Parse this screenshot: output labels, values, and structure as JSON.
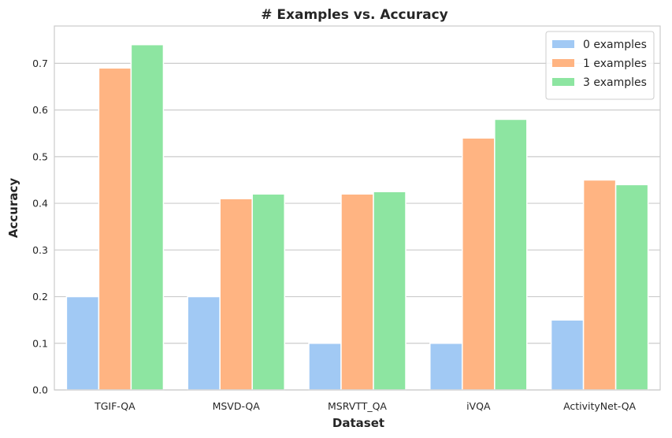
{
  "chart_data": {
    "type": "bar",
    "title": "# Examples vs. Accuracy",
    "xlabel": "Dataset",
    "ylabel": "Accuracy",
    "categories": [
      "TGIF-QA",
      "MSVD-QA",
      "MSRVTT_QA",
      "iVQA",
      "ActivityNet-QA"
    ],
    "series": [
      {
        "name": "0 examples",
        "color": "#a1c9f4",
        "values": [
          0.2,
          0.2,
          0.1,
          0.1,
          0.15
        ]
      },
      {
        "name": "1 examples",
        "color": "#ffb482",
        "values": [
          0.69,
          0.41,
          0.42,
          0.54,
          0.45
        ]
      },
      {
        "name": "3 examples",
        "color": "#8de5a1",
        "values": [
          0.74,
          0.42,
          0.425,
          0.58,
          0.44
        ]
      }
    ],
    "ylim": [
      0,
      0.78
    ],
    "yticks": [
      0.0,
      0.1,
      0.2,
      0.3,
      0.4,
      0.5,
      0.6,
      0.7
    ],
    "ytick_labels": [
      "0.0",
      "0.1",
      "0.2",
      "0.3",
      "0.4",
      "0.5",
      "0.6",
      "0.7"
    ],
    "grid": "horizontal",
    "legend_position": "top-right"
  }
}
